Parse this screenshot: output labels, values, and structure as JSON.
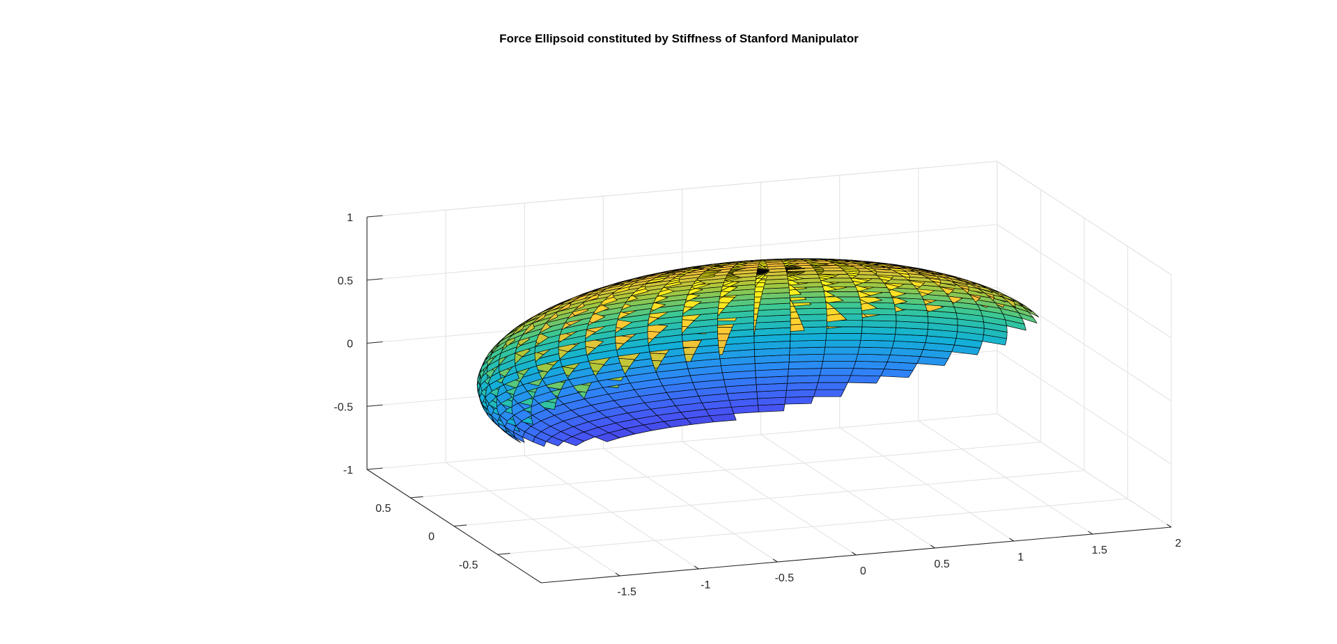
{
  "chart_data": {
    "type": "surface",
    "title": "Force Ellipsoid constituted by Stiffness of Stanford Manipulator",
    "xlabel": "",
    "ylabel": "",
    "zlabel": "",
    "xlim": [
      -2,
      2
    ],
    "ylim": [
      -1,
      1
    ],
    "zlim": [
      -1,
      1
    ],
    "x_ticks": [
      "-1.5",
      "-1",
      "-0.5",
      "0",
      "0.5",
      "1",
      "1.5",
      "2"
    ],
    "y_ticks": [
      "-0.5",
      "0",
      "0.5"
    ],
    "z_ticks": [
      "-1",
      "-0.5",
      "0",
      "0.5",
      "1"
    ],
    "grid": true,
    "colormap": "parula",
    "surface": {
      "shape": "ellipsoid",
      "center": [
        0,
        0,
        0
      ],
      "semi_axes": [
        1.8,
        0.8,
        0.8
      ],
      "mesh_rows": 50,
      "mesh_cols": 50,
      "edge_color": "#000000"
    }
  }
}
